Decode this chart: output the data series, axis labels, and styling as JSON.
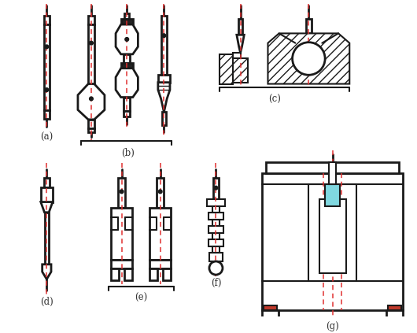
{
  "bg_color": "#ffffff",
  "line_color": "#1a1a1a",
  "red_dash_color": "#e03030",
  "label_color": "#333333",
  "cyan_color": "#80d8e0",
  "labels": [
    "(a)",
    "(b)",
    "(c)",
    "(d)",
    "(e)",
    "(f)",
    "(g)"
  ],
  "lw": 1.5,
  "lw2": 2.0,
  "lw3": 1.0
}
